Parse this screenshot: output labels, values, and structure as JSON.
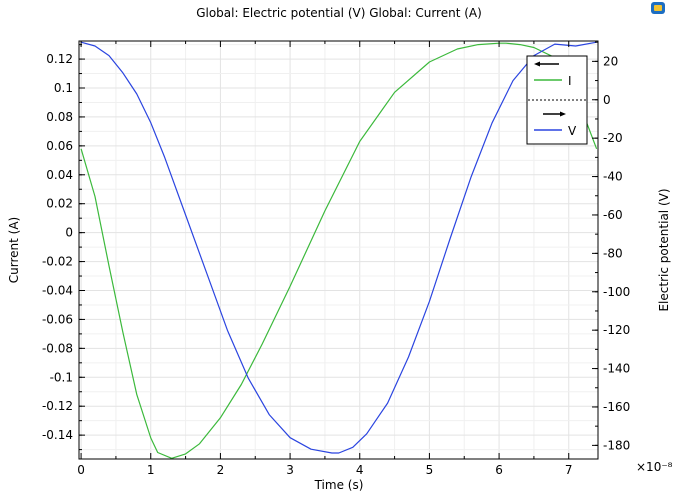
{
  "chart_data": {
    "type": "line",
    "title": "Global: Electric potential (V)  Global: Current (A)",
    "xlabel": "Time (s)",
    "x_multiplier_label": "×10⁻⁸",
    "ylabel_left": "Current (A)",
    "ylabel_right": "Electric potential (V)",
    "xlim": [
      -0.03,
      7.42
    ],
    "ylim_left": [
      -0.1565,
      0.1325
    ],
    "ylim_right": [
      -187.1,
      30.6
    ],
    "x_ticks": [
      0,
      1,
      2,
      3,
      4,
      5,
      6,
      7
    ],
    "y_left_ticks": [
      0.12,
      0.1,
      0.08,
      0.06,
      0.04,
      0.02,
      0,
      -0.02,
      -0.04,
      -0.06,
      -0.08,
      -0.1,
      -0.12,
      -0.14
    ],
    "y_left_tick_labels": [
      "0.12",
      "0.1",
      "0.08",
      "0.06",
      "0.04",
      "0.02",
      "0",
      "-0.02",
      "-0.04",
      "-0.06",
      "-0.08",
      "-0.1",
      "-0.12",
      "-0.14"
    ],
    "y_right_ticks": [
      20,
      0,
      -20,
      -40,
      -60,
      -80,
      -100,
      -120,
      -140,
      -160,
      -180
    ],
    "y_right_tick_labels": [
      "20",
      "0",
      "-20",
      "-40",
      "-60",
      "-80",
      "-100",
      "-120",
      "-140",
      "-160",
      "-180"
    ],
    "grid": true,
    "legend_position": "top-right",
    "series": [
      {
        "name": "I",
        "axis": "left",
        "color": "#3cb93c",
        "x": [
          0.0,
          0.2,
          0.4,
          0.6,
          0.8,
          1.0,
          1.1,
          1.3,
          1.5,
          1.7,
          2.0,
          2.3,
          2.6,
          3.0,
          3.5,
          4.0,
          4.5,
          5.0,
          5.4,
          5.7,
          6.0,
          6.1,
          6.3,
          6.5,
          6.8,
          7.1,
          7.4
        ],
        "values": [
          0.058,
          0.025,
          -0.023,
          -0.069,
          -0.112,
          -0.142,
          -0.152,
          -0.156,
          -0.153,
          -0.146,
          -0.128,
          -0.105,
          -0.077,
          -0.037,
          0.015,
          0.063,
          0.097,
          0.118,
          0.127,
          0.13,
          0.131,
          0.131,
          0.13,
          0.128,
          0.121,
          0.096,
          0.058
        ]
      },
      {
        "name": "V",
        "axis": "right",
        "color": "#2b45e0",
        "x": [
          0.0,
          0.2,
          0.4,
          0.6,
          0.8,
          1.0,
          1.2,
          1.5,
          1.8,
          2.1,
          2.4,
          2.7,
          3.0,
          3.3,
          3.6,
          3.7,
          3.9,
          4.1,
          4.4,
          4.7,
          5.0,
          5.3,
          5.6,
          5.9,
          6.2,
          6.5,
          6.8,
          7.1,
          7.4
        ],
        "values": [
          30,
          28,
          23,
          14,
          3,
          -12,
          -30,
          -60,
          -90,
          -120,
          -145,
          -164,
          -176,
          -182,
          -184,
          -184,
          -181,
          -174,
          -158,
          -134,
          -105,
          -72,
          -40,
          -12,
          10,
          23,
          29,
          28,
          30
        ]
      }
    ]
  },
  "ui": {
    "corner_icon_color": "#1d6ec2"
  }
}
